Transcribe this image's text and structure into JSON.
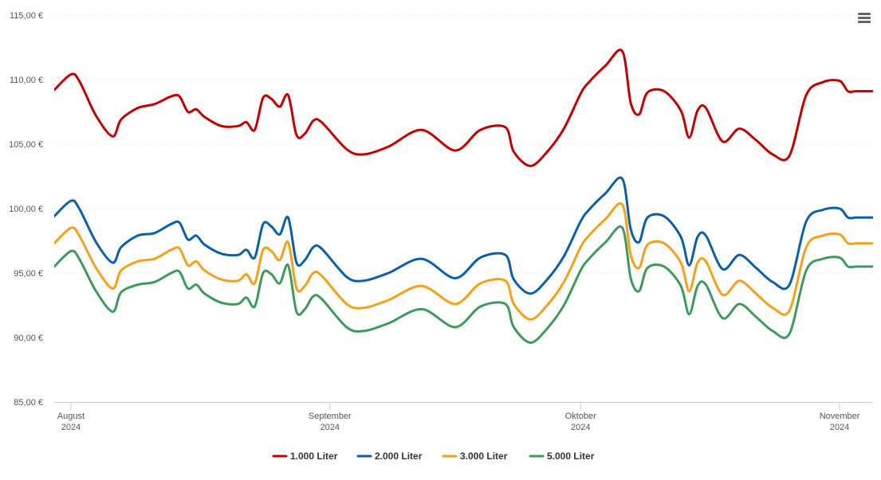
{
  "chart_data": {
    "type": "line",
    "ylim": [
      85,
      115
    ],
    "y_ticks": [
      "85,00 €",
      "90,00 €",
      "95,00 €",
      "100,00 €",
      "105,00 €",
      "110,00 €",
      "115,00 €"
    ],
    "y_tick_values": [
      85,
      90,
      95,
      100,
      105,
      110,
      115
    ],
    "x_ticks": [
      {
        "day": 2,
        "line1": "August",
        "line2": "2024"
      },
      {
        "day": 33,
        "line1": "September",
        "line2": "2024"
      },
      {
        "day": 63,
        "line1": "Oktober",
        "line2": "2024"
      },
      {
        "day": 94,
        "line1": "November",
        "line2": "2024"
      }
    ],
    "xlim": [
      0,
      98
    ],
    "grid": true,
    "legend_placement": "bottom-center",
    "x": [
      0,
      2,
      3,
      5,
      7,
      8,
      10,
      12,
      14,
      15,
      16,
      17,
      18,
      20,
      22,
      23,
      24,
      25,
      26,
      27,
      28,
      29,
      30,
      31,
      32,
      35,
      37,
      40,
      44,
      48,
      51,
      54,
      55,
      57,
      59,
      61,
      63,
      64,
      66,
      68,
      69,
      70,
      71,
      73,
      75,
      76,
      77,
      78,
      80,
      82,
      84,
      86,
      88,
      90,
      92,
      94,
      95,
      96,
      98
    ],
    "series": [
      {
        "name": "1.000 Liter",
        "color": "#c00000",
        "values": [
          109.2,
          110.4,
          109.9,
          107.2,
          105.6,
          106.9,
          107.8,
          108.1,
          108.7,
          108.7,
          107.5,
          107.7,
          107.1,
          106.4,
          106.4,
          106.7,
          106.1,
          108.6,
          108.5,
          107.9,
          108.8,
          105.7,
          105.8,
          106.8,
          106.7,
          104.6,
          104.2,
          104.8,
          106.1,
          104.5,
          106.1,
          106.3,
          104.4,
          103.3,
          104.4,
          106.2,
          108.9,
          109.8,
          111.1,
          112.2,
          108.2,
          107.3,
          109.0,
          109.1,
          107.6,
          105.5,
          107.6,
          107.8,
          105.2,
          106.2,
          105.3,
          104.2,
          104.1,
          108.8,
          109.8,
          109.9,
          109.1,
          109.1,
          109.1
        ]
      },
      {
        "name": "2.000 Liter",
        "color": "#0a5fa8",
        "values": [
          99.4,
          100.6,
          100.0,
          97.4,
          95.8,
          97.0,
          97.9,
          98.1,
          98.8,
          98.9,
          97.6,
          97.9,
          97.2,
          96.5,
          96.4,
          96.8,
          96.2,
          98.8,
          98.6,
          98.0,
          99.3,
          95.8,
          96.0,
          97.0,
          96.9,
          94.7,
          94.4,
          95.0,
          96.1,
          94.6,
          96.2,
          96.4,
          94.5,
          93.4,
          94.5,
          96.3,
          99.0,
          99.9,
          101.2,
          102.3,
          98.4,
          97.4,
          99.3,
          99.4,
          97.8,
          95.6,
          97.8,
          97.9,
          95.3,
          96.4,
          95.4,
          94.3,
          94.1,
          99.0,
          99.9,
          100.0,
          99.3,
          99.3,
          99.3
        ]
      },
      {
        "name": "3.000 Liter",
        "color": "#f5a01a",
        "values": [
          97.3,
          98.5,
          97.9,
          95.4,
          93.8,
          95.2,
          95.9,
          96.1,
          96.8,
          96.9,
          95.6,
          95.9,
          95.2,
          94.5,
          94.4,
          94.9,
          94.2,
          96.8,
          96.7,
          96.0,
          97.4,
          93.8,
          94.0,
          95.0,
          94.8,
          92.6,
          92.3,
          92.9,
          94.0,
          92.6,
          94.2,
          94.4,
          92.6,
          91.4,
          92.5,
          94.3,
          97.0,
          97.9,
          99.2,
          100.3,
          96.4,
          95.4,
          97.2,
          97.3,
          95.8,
          93.6,
          95.8,
          95.9,
          93.3,
          94.4,
          93.4,
          92.3,
          92.1,
          97.0,
          97.9,
          98.0,
          97.3,
          97.3,
          97.3
        ]
      },
      {
        "name": "5.000 Liter",
        "color": "#3d9a5c",
        "values": [
          95.5,
          96.7,
          96.1,
          93.6,
          92.0,
          93.5,
          94.1,
          94.3,
          95.0,
          95.1,
          93.8,
          94.1,
          93.4,
          92.7,
          92.6,
          93.1,
          92.4,
          95.0,
          94.9,
          94.2,
          95.6,
          92.0,
          92.2,
          93.2,
          93.0,
          90.8,
          90.5,
          91.1,
          92.2,
          90.8,
          92.4,
          92.6,
          90.8,
          89.6,
          90.7,
          92.5,
          95.2,
          96.1,
          97.4,
          98.5,
          94.6,
          93.6,
          95.4,
          95.5,
          94.0,
          91.8,
          94.0,
          94.1,
          91.5,
          92.6,
          91.6,
          90.5,
          90.3,
          95.2,
          96.1,
          96.2,
          95.5,
          95.5,
          95.5
        ]
      }
    ]
  },
  "menu": {
    "icon": "hamburger-menu-icon"
  }
}
